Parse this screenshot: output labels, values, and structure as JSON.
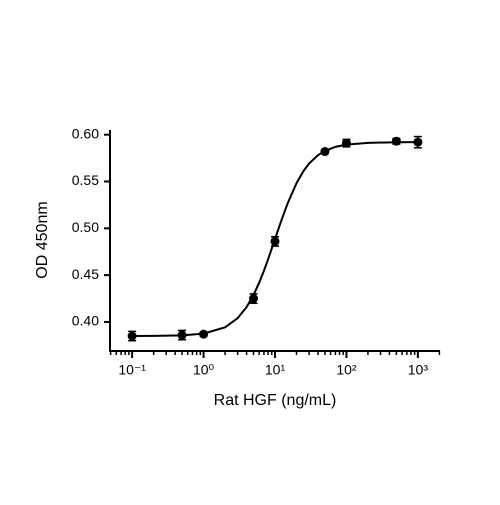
{
  "chart_data": {
    "type": "scatter",
    "x_label": "Rat HGF (ng/mL)",
    "y_label": "OD 450nm",
    "xscale": "log",
    "color": "#000000",
    "xlim": [
      0.049,
      2040
    ],
    "ylim": [
      0.369,
      0.605
    ],
    "xticks": [
      {
        "value": 0.1,
        "label": "10⁻¹"
      },
      {
        "value": 1,
        "label": "10⁰"
      },
      {
        "value": 10,
        "label": "10¹"
      },
      {
        "value": 100,
        "label": "10²"
      },
      {
        "value": 1000,
        "label": "10³"
      }
    ],
    "xminorticks": [
      0.05,
      0.06,
      0.07,
      0.08,
      0.09,
      0.2,
      0.3,
      0.4,
      0.5,
      0.6,
      0.7,
      0.8,
      0.9,
      2,
      3,
      4,
      5,
      6,
      7,
      8,
      9,
      20,
      30,
      40,
      50,
      60,
      70,
      80,
      90,
      200,
      300,
      400,
      500,
      600,
      700,
      800,
      900,
      2000
    ],
    "yticks": [
      {
        "value": 0.4,
        "label": "0.40"
      },
      0.45,
      {
        "value": 0.5,
        "label": "0.50"
      },
      0.55,
      {
        "value": 0.6,
        "label": "0.60"
      }
    ],
    "x": [
      0.1,
      0.5,
      1,
      5,
      10,
      50,
      100,
      500,
      1000
    ],
    "values": [
      0.385,
      0.386,
      0.387,
      0.425,
      0.486,
      0.582,
      0.591,
      0.593,
      0.592
    ],
    "errors": [
      0.005,
      0.005,
      0.002,
      0.005,
      0.005,
      0.002,
      0.004,
      0.003,
      0.006
    ],
    "curve": {
      "x": [
        0.1,
        0.2,
        0.5,
        1,
        2,
        3,
        4,
        5,
        6,
        7,
        8,
        10,
        12,
        15,
        20,
        25,
        30,
        40,
        50,
        70,
        100,
        200,
        500,
        1000
      ],
      "values": [
        0.385,
        0.3851,
        0.3857,
        0.3876,
        0.3943,
        0.4041,
        0.4159,
        0.4288,
        0.4419,
        0.4547,
        0.4669,
        0.4885,
        0.5063,
        0.5265,
        0.5482,
        0.5611,
        0.5692,
        0.5781,
        0.5827,
        0.587,
        0.5894,
        0.5913,
        0.5919,
        0.592
      ]
    }
  }
}
